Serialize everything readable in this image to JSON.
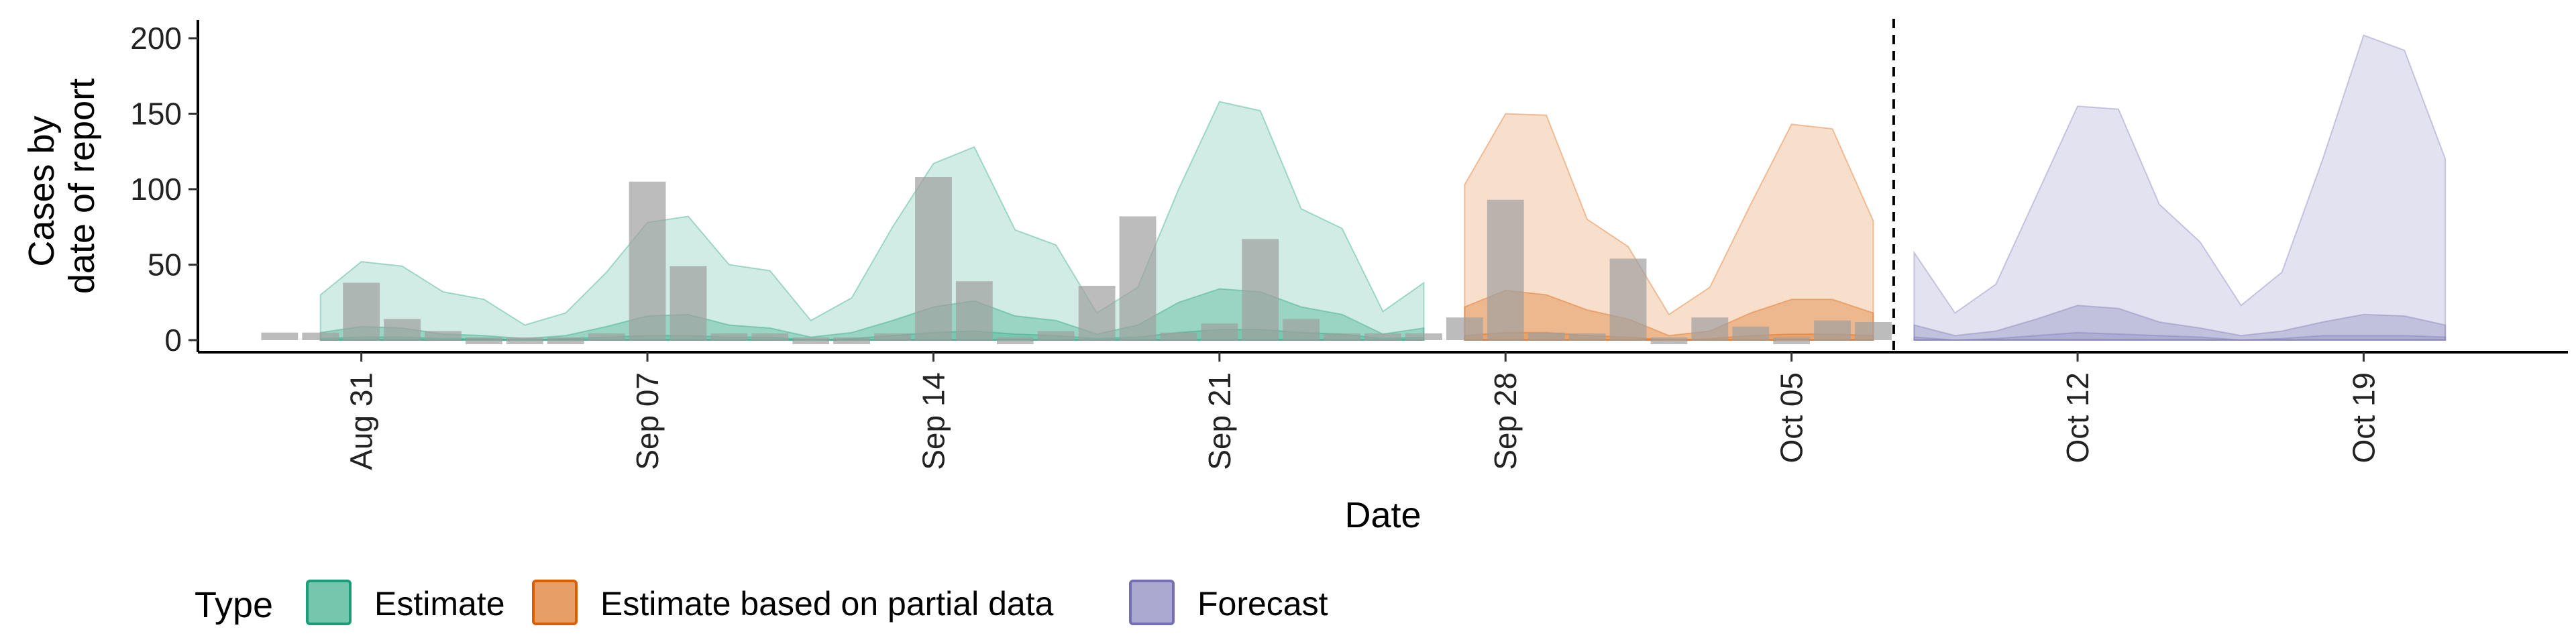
{
  "chart_data": {
    "type": "area",
    "title": "",
    "xlabel": "Date",
    "ylabel_lines": [
      "Cases by",
      "date of report"
    ],
    "ylim": [
      -8,
      212
    ],
    "y_ticks": [
      0,
      50,
      100,
      150,
      200
    ],
    "x_ticks": [
      {
        "date": "2020-08-31",
        "label": "Aug 31"
      },
      {
        "date": "2020-09-07",
        "label": "Sep 07"
      },
      {
        "date": "2020-09-14",
        "label": "Sep 14"
      },
      {
        "date": "2020-09-21",
        "label": "Sep 21"
      },
      {
        "date": "2020-09-28",
        "label": "Sep 28"
      },
      {
        "date": "2020-10-05",
        "label": "Oct 05"
      },
      {
        "date": "2020-10-12",
        "label": "Oct 12"
      },
      {
        "date": "2020-10-19",
        "label": "Oct 19"
      }
    ],
    "xlim": [
      "2020-08-27",
      "2020-10-24"
    ],
    "forecast_date": "2020-10-07",
    "grid": false,
    "legend": {
      "title": "Type",
      "position": "bottom",
      "entries": [
        {
          "label": "Estimate",
          "color": "#1b9e77"
        },
        {
          "label": "Estimate based on partial data",
          "color": "#d95f02"
        },
        {
          "label": "Forecast",
          "color": "#7570b3"
        }
      ]
    },
    "observed_bar_color": "#a0a0a0",
    "observed": [
      {
        "date": "2020-08-29",
        "cases": 5
      },
      {
        "date": "2020-08-30",
        "cases": 5
      },
      {
        "date": "2020-08-31",
        "cases": 38
      },
      {
        "date": "2020-09-01",
        "cases": 14
      },
      {
        "date": "2020-09-02",
        "cases": 6
      },
      {
        "date": "2020-09-03",
        "cases": 0
      },
      {
        "date": "2020-09-04",
        "cases": 0
      },
      {
        "date": "2020-09-05",
        "cases": 0
      },
      {
        "date": "2020-09-06",
        "cases": 3
      },
      {
        "date": "2020-09-07",
        "cases": 105
      },
      {
        "date": "2020-09-08",
        "cases": 49
      },
      {
        "date": "2020-09-09",
        "cases": 2
      },
      {
        "date": "2020-09-10",
        "cases": 2
      },
      {
        "date": "2020-09-11",
        "cases": 0
      },
      {
        "date": "2020-09-12",
        "cases": 0
      },
      {
        "date": "2020-09-13",
        "cases": 4
      },
      {
        "date": "2020-09-14",
        "cases": 108
      },
      {
        "date": "2020-09-15",
        "cases": 39
      },
      {
        "date": "2020-09-16",
        "cases": 0
      },
      {
        "date": "2020-09-17",
        "cases": 6
      },
      {
        "date": "2020-09-18",
        "cases": 36
      },
      {
        "date": "2020-09-19",
        "cases": 82
      },
      {
        "date": "2020-09-20",
        "cases": 5
      },
      {
        "date": "2020-09-21",
        "cases": 11
      },
      {
        "date": "2020-09-22",
        "cases": 67
      },
      {
        "date": "2020-09-23",
        "cases": 14
      },
      {
        "date": "2020-09-24",
        "cases": 4
      },
      {
        "date": "2020-09-25",
        "cases": 4
      },
      {
        "date": "2020-09-26",
        "cases": 4
      },
      {
        "date": "2020-09-27",
        "cases": 15
      },
      {
        "date": "2020-09-28",
        "cases": 93
      },
      {
        "date": "2020-09-29",
        "cases": 5
      },
      {
        "date": "2020-09-30",
        "cases": 2
      },
      {
        "date": "2020-10-01",
        "cases": 54
      },
      {
        "date": "2020-10-02",
        "cases": 0
      },
      {
        "date": "2020-10-03",
        "cases": 15
      },
      {
        "date": "2020-10-04",
        "cases": 9
      },
      {
        "date": "2020-10-05",
        "cases": 0
      },
      {
        "date": "2020-10-06",
        "cases": 13
      },
      {
        "date": "2020-10-07",
        "cases": 12
      }
    ],
    "series": [
      {
        "type_label": "Estimate",
        "color": "#1b9e77",
        "dates": [
          "2020-08-30",
          "2020-08-31",
          "2020-09-01",
          "2020-09-02",
          "2020-09-03",
          "2020-09-04",
          "2020-09-05",
          "2020-09-06",
          "2020-09-07",
          "2020-09-08",
          "2020-09-09",
          "2020-09-10",
          "2020-09-11",
          "2020-09-12",
          "2020-09-13",
          "2020-09-14",
          "2020-09-15",
          "2020-09-16",
          "2020-09-17",
          "2020-09-18",
          "2020-09-19",
          "2020-09-20",
          "2020-09-21",
          "2020-09-22",
          "2020-09-23",
          "2020-09-24",
          "2020-09-25",
          "2020-09-26"
        ],
        "upper90": [
          30,
          52,
          49,
          32,
          27,
          10,
          18,
          45,
          78,
          82,
          50,
          46,
          13,
          28,
          75,
          117,
          128,
          73,
          63,
          18,
          35,
          100,
          158,
          152,
          87,
          74,
          19,
          38
        ],
        "upper50": [
          5,
          9,
          8,
          4,
          3,
          1,
          3,
          9,
          16,
          17,
          10,
          8,
          2,
          5,
          13,
          22,
          26,
          16,
          13,
          4,
          10,
          25,
          34,
          32,
          22,
          17,
          4,
          8
        ],
        "lower50": [
          1,
          2,
          2,
          1,
          1,
          0,
          1,
          2,
          3,
          3,
          2,
          2,
          0,
          1,
          3,
          5,
          6,
          4,
          3,
          1,
          2,
          5,
          7,
          7,
          5,
          4,
          1,
          2
        ]
      },
      {
        "type_label": "Estimate based on partial data",
        "color": "#d95f02",
        "dates": [
          "2020-09-27",
          "2020-09-28",
          "2020-09-29",
          "2020-09-30",
          "2020-10-01",
          "2020-10-02",
          "2020-10-03",
          "2020-10-04",
          "2020-10-05",
          "2020-10-06",
          "2020-10-07"
        ],
        "upper90": [
          103,
          150,
          149,
          80,
          62,
          17,
          35,
          90,
          143,
          140,
          79
        ],
        "upper50": [
          22,
          33,
          30,
          20,
          14,
          3,
          6,
          18,
          27,
          27,
          18
        ],
        "lower50": [
          3,
          5,
          5,
          3,
          2,
          0,
          1,
          3,
          4,
          4,
          3
        ]
      },
      {
        "type_label": "Forecast",
        "color": "#7570b3",
        "dates": [
          "2020-10-08",
          "2020-10-09",
          "2020-10-10",
          "2020-10-11",
          "2020-10-12",
          "2020-10-13",
          "2020-10-14",
          "2020-10-15",
          "2020-10-16",
          "2020-10-17",
          "2020-10-18",
          "2020-10-19",
          "2020-10-20",
          "2020-10-21"
        ],
        "upper90": [
          58,
          18,
          37,
          96,
          155,
          153,
          90,
          65,
          23,
          45,
          120,
          202,
          192,
          120
        ],
        "upper50": [
          10,
          3,
          6,
          14,
          23,
          21,
          12,
          8,
          3,
          6,
          12,
          17,
          16,
          10
        ],
        "lower50": [
          2,
          0,
          1,
          3,
          5,
          4,
          3,
          2,
          0,
          1,
          3,
          3,
          3,
          2
        ]
      }
    ]
  }
}
